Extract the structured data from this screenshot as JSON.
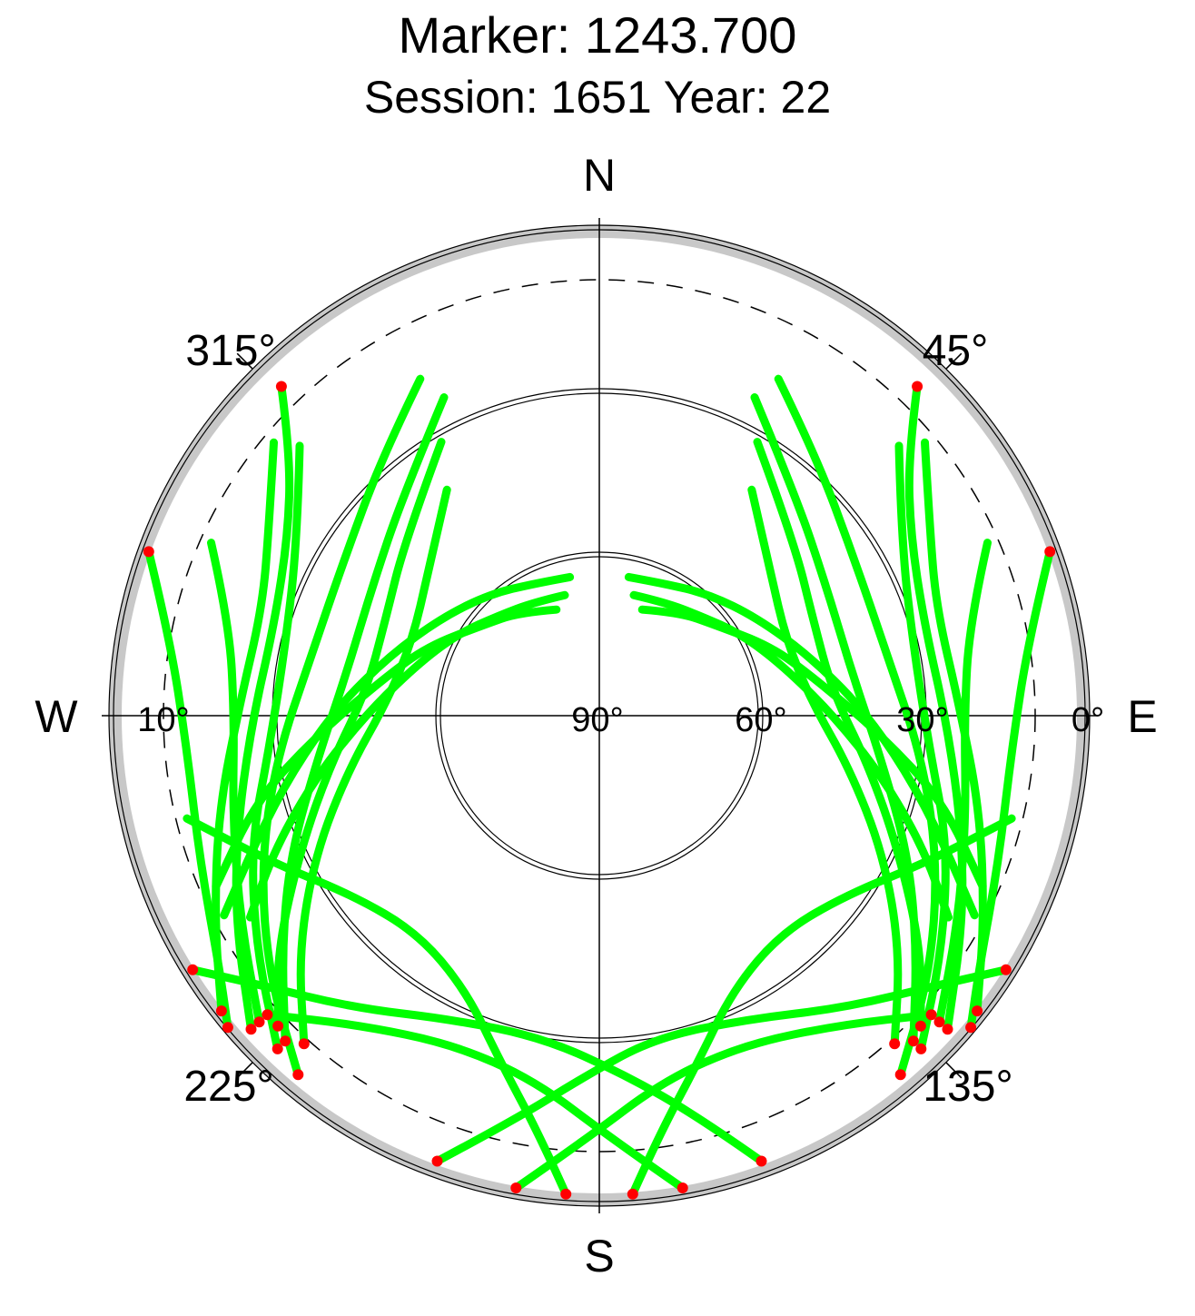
{
  "chart_data": {
    "type": "scatter",
    "subtype": "polar-skyplot",
    "title": "Marker: 1243.700",
    "subtitle": "Session: 1651 Year: 22",
    "compass": {
      "north": "N",
      "south": "S",
      "east": "E",
      "west": "W"
    },
    "azimuth_ticks": [
      {
        "value": 45,
        "label": "45°"
      },
      {
        "value": 135,
        "label": "135°"
      },
      {
        "value": 225,
        "label": "225°"
      },
      {
        "value": 315,
        "label": "315°"
      }
    ],
    "elevation_ticks": [
      {
        "value": 90,
        "label": "90°"
      },
      {
        "value": 60,
        "label": "60°"
      },
      {
        "value": 30,
        "label": "30°"
      },
      {
        "value": 10,
        "label": "10°"
      },
      {
        "value": 0,
        "label": "0°"
      }
    ],
    "elevation_circles": [
      0,
      10,
      30,
      60
    ],
    "colors": {
      "track": "#00ff00",
      "low_elevation": "#ff0000",
      "horizon_mask": "#c8c8c8",
      "axis": "#000000"
    },
    "series": [
      {
        "color": "green",
        "points": [
          [
            22,
            69
          ],
          [
            38,
            66
          ],
          [
            52,
            63
          ],
          [
            68,
            56
          ],
          [
            80,
            50
          ],
          [
            94,
            38
          ],
          [
            104,
            25
          ],
          [
            114,
            13
          ]
        ]
      },
      {
        "color": "green",
        "points": [
          [
            16,
            67
          ],
          [
            30,
            66
          ],
          [
            45,
            64
          ],
          [
            60,
            60
          ],
          [
            75,
            55
          ],
          [
            90,
            47
          ],
          [
            102,
            37
          ],
          [
            112,
            26
          ],
          [
            120,
            16
          ]
        ]
      },
      {
        "color": "green",
        "points": [
          [
            12,
            64
          ],
          [
            26,
            63
          ],
          [
            42,
            60
          ],
          [
            58,
            56
          ],
          [
            74,
            50
          ],
          [
            88,
            42
          ],
          [
            100,
            33
          ],
          [
            110,
            23
          ],
          [
            118,
            12
          ]
        ]
      },
      {
        "color": "green",
        "points": [
          [
            30,
            32
          ],
          [
            48,
            42
          ],
          [
            66,
            47
          ],
          [
            84,
            47
          ],
          [
            100,
            40
          ],
          [
            114,
            30
          ],
          [
            126,
            17
          ],
          [
            134,
            8
          ]
        ]
      },
      {
        "color": "green",
        "points": [
          [
            26,
            25
          ],
          [
            42,
            36
          ],
          [
            60,
            42
          ],
          [
            80,
            43
          ],
          [
            98,
            38
          ],
          [
            114,
            28
          ],
          [
            126,
            18
          ],
          [
            136,
            7
          ]
        ]
      },
      {
        "color": "green",
        "points": [
          [
            34,
            40
          ],
          [
            50,
            49
          ],
          [
            68,
            53
          ],
          [
            86,
            51
          ],
          [
            102,
            43
          ],
          [
            116,
            32
          ],
          [
            128,
            20
          ],
          [
            138,
            9
          ]
        ]
      },
      {
        "color": "green",
        "points": [
          [
            28,
            20
          ],
          [
            40,
            28
          ],
          [
            58,
            35
          ],
          [
            78,
            36
          ],
          [
            98,
            30
          ],
          [
            114,
            22
          ],
          [
            128,
            13
          ],
          [
            140,
            4
          ]
        ]
      },
      {
        "color": "green",
        "points": [
          [
            48,
            16
          ],
          [
            60,
            26
          ],
          [
            78,
            31
          ],
          [
            96,
            29
          ],
          [
            110,
            22
          ],
          [
            124,
            14
          ],
          [
            136,
            5
          ]
        ]
      },
      {
        "color": "green",
        "points": [
          [
            44,
            6
          ],
          [
            50,
            16
          ],
          [
            60,
            24
          ],
          [
            74,
            28
          ],
          [
            92,
            26
          ],
          [
            108,
            20
          ],
          [
            120,
            13
          ],
          [
            132,
            4
          ]
        ]
      },
      {
        "color": "green",
        "points": [
          [
            66,
            12
          ],
          [
            76,
            20
          ],
          [
            90,
            23
          ],
          [
            106,
            20
          ],
          [
            120,
            14
          ],
          [
            132,
            6
          ]
        ]
      },
      {
        "color": "green",
        "points": [
          [
            50,
            12
          ],
          [
            60,
            20
          ],
          [
            72,
            25
          ],
          [
            88,
            24
          ],
          [
            104,
            18
          ],
          [
            118,
            10
          ],
          [
            128,
            2
          ]
        ]
      },
      {
        "color": "green",
        "points": [
          [
            70,
            2
          ],
          [
            80,
            10
          ],
          [
            94,
            14
          ],
          [
            110,
            12
          ],
          [
            124,
            6
          ],
          [
            130,
            1
          ]
        ]
      },
      {
        "color": "green",
        "points": [
          [
            338,
            69
          ],
          [
            322,
            66
          ],
          [
            308,
            63
          ],
          [
            292,
            56
          ],
          [
            280,
            50
          ],
          [
            266,
            38
          ],
          [
            256,
            25
          ],
          [
            246,
            13
          ]
        ]
      },
      {
        "color": "green",
        "points": [
          [
            344,
            67
          ],
          [
            330,
            66
          ],
          [
            315,
            64
          ],
          [
            300,
            60
          ],
          [
            285,
            55
          ],
          [
            270,
            47
          ],
          [
            258,
            37
          ],
          [
            248,
            26
          ],
          [
            240,
            16
          ]
        ]
      },
      {
        "color": "green",
        "points": [
          [
            348,
            64
          ],
          [
            334,
            63
          ],
          [
            318,
            60
          ],
          [
            302,
            56
          ],
          [
            286,
            50
          ],
          [
            272,
            42
          ],
          [
            260,
            33
          ],
          [
            250,
            23
          ],
          [
            242,
            12
          ]
        ]
      },
      {
        "color": "green",
        "points": [
          [
            330,
            32
          ],
          [
            312,
            42
          ],
          [
            294,
            47
          ],
          [
            276,
            47
          ],
          [
            260,
            40
          ],
          [
            246,
            30
          ],
          [
            234,
            17
          ],
          [
            226,
            8
          ]
        ]
      },
      {
        "color": "green",
        "points": [
          [
            334,
            25
          ],
          [
            318,
            36
          ],
          [
            300,
            42
          ],
          [
            280,
            43
          ],
          [
            262,
            38
          ],
          [
            246,
            28
          ],
          [
            234,
            18
          ],
          [
            224,
            7
          ]
        ]
      },
      {
        "color": "green",
        "points": [
          [
            326,
            40
          ],
          [
            310,
            49
          ],
          [
            292,
            53
          ],
          [
            274,
            51
          ],
          [
            258,
            43
          ],
          [
            244,
            32
          ],
          [
            232,
            20
          ],
          [
            222,
            9
          ]
        ]
      },
      {
        "color": "green",
        "points": [
          [
            332,
            20
          ],
          [
            320,
            28
          ],
          [
            302,
            35
          ],
          [
            282,
            36
          ],
          [
            262,
            30
          ],
          [
            246,
            22
          ],
          [
            232,
            13
          ],
          [
            220,
            4
          ]
        ]
      },
      {
        "color": "green",
        "points": [
          [
            312,
            16
          ],
          [
            300,
            26
          ],
          [
            282,
            31
          ],
          [
            264,
            29
          ],
          [
            250,
            22
          ],
          [
            236,
            14
          ],
          [
            224,
            5
          ]
        ]
      },
      {
        "color": "green",
        "points": [
          [
            316,
            6
          ],
          [
            310,
            16
          ],
          [
            300,
            24
          ],
          [
            286,
            28
          ],
          [
            268,
            26
          ],
          [
            252,
            20
          ],
          [
            240,
            13
          ],
          [
            228,
            4
          ]
        ]
      },
      {
        "color": "green",
        "points": [
          [
            294,
            12
          ],
          [
            284,
            20
          ],
          [
            270,
            23
          ],
          [
            254,
            20
          ],
          [
            240,
            14
          ],
          [
            228,
            6
          ]
        ]
      },
      {
        "color": "green",
        "points": [
          [
            310,
            12
          ],
          [
            300,
            20
          ],
          [
            288,
            25
          ],
          [
            272,
            24
          ],
          [
            256,
            18
          ],
          [
            242,
            10
          ],
          [
            232,
            2
          ]
        ]
      },
      {
        "color": "green",
        "points": [
          [
            290,
            2
          ],
          [
            280,
            10
          ],
          [
            266,
            14
          ],
          [
            250,
            12
          ],
          [
            236,
            6
          ],
          [
            230,
            1
          ]
        ]
      },
      {
        "color": "green",
        "points": [
          [
            160,
            3
          ],
          [
            166,
            14
          ],
          [
            176,
            24
          ],
          [
            190,
            30
          ],
          [
            206,
            28
          ],
          [
            220,
            20
          ],
          [
            232,
            10
          ],
          [
            238,
            2
          ]
        ]
      },
      {
        "color": "green",
        "points": [
          [
            170,
            2
          ],
          [
            178,
            12
          ],
          [
            190,
            22
          ],
          [
            204,
            24
          ],
          [
            218,
            18
          ],
          [
            228,
            8
          ]
        ]
      },
      {
        "color": "green",
        "points": [
          [
            200,
            3
          ],
          [
            192,
            14
          ],
          [
            182,
            24
          ],
          [
            170,
            30
          ],
          [
            154,
            28
          ],
          [
            140,
            20
          ],
          [
            128,
            10
          ],
          [
            122,
            2
          ]
        ]
      },
      {
        "color": "green",
        "points": [
          [
            190,
            2
          ],
          [
            182,
            12
          ],
          [
            170,
            22
          ],
          [
            156,
            24
          ],
          [
            142,
            18
          ],
          [
            132,
            8
          ]
        ]
      },
      {
        "color": "green",
        "points": [
          [
            176,
            2
          ],
          [
            172,
            12
          ],
          [
            164,
            24
          ],
          [
            154,
            34
          ],
          [
            140,
            38
          ],
          [
            126,
            34
          ],
          [
            114,
            24
          ],
          [
            104,
            12
          ]
        ]
      },
      {
        "color": "green",
        "points": [
          [
            184,
            2
          ],
          [
            188,
            12
          ],
          [
            196,
            24
          ],
          [
            206,
            34
          ],
          [
            220,
            38
          ],
          [
            234,
            34
          ],
          [
            246,
            24
          ],
          [
            256,
            12
          ]
        ]
      }
    ]
  }
}
